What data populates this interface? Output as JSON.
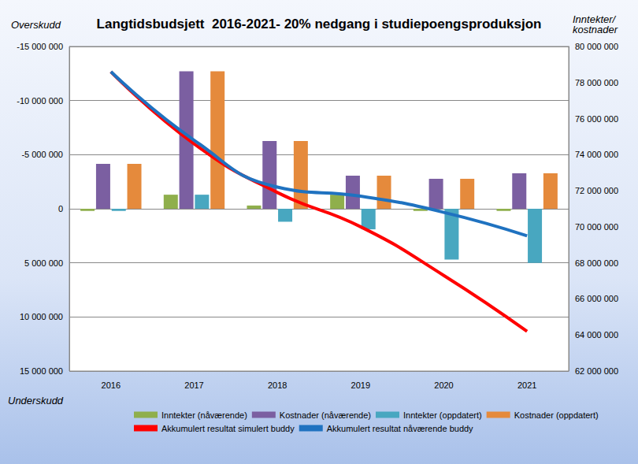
{
  "chart_data": {
    "type": "bar",
    "title": "Langtidsbudsjett  2016-2021- 20% nedgang i studiepoengsproduksjon",
    "ylabel_top": "Overskudd",
    "ylabel_bottom": "Underskudd",
    "y2label": "Inntekter/ kostnader",
    "categories": [
      "2016",
      "2017",
      "2018",
      "2019",
      "2020",
      "2021"
    ],
    "series": [
      {
        "name": "Inntekter (nåværende)",
        "type": "bar",
        "color": "#8faf4c",
        "values": [
          200000,
          -1300000,
          -300000,
          -1300000,
          200000,
          200000
        ]
      },
      {
        "name": "Kostnader (nåværende)",
        "type": "bar",
        "color": "#7b5fa1",
        "values": [
          -4150000,
          -12700000,
          -6260000,
          -3060000,
          -2770000,
          -3280000
        ]
      },
      {
        "name": "Inntekter (oppdatert)",
        "type": "bar",
        "color": "#48a7c0",
        "values": [
          200000,
          -1300000,
          1200000,
          1900000,
          4700000,
          5000000
        ]
      },
      {
        "name": "Kostnader (oppdatert)",
        "type": "bar",
        "color": "#e58a3c",
        "values": [
          -4150000,
          -12700000,
          -6260000,
          -3060000,
          -2770000,
          -3280000
        ]
      },
      {
        "name": "Akkumulert resultat simulert buddy",
        "type": "line",
        "axis": "y2",
        "color": "#ff0000",
        "marker": "none",
        "values": [
          78600000,
          74600000,
          71900000,
          70000000,
          67300000,
          64200000
        ]
      },
      {
        "name": "Akkumulert resultat nåværende buddy",
        "type": "line",
        "axis": "y2",
        "color": "#1f72c0",
        "marker": "none",
        "values": [
          78600000,
          74800000,
          72200000,
          71700000,
          70800000,
          69500000
        ]
      }
    ],
    "ylim": [
      15000000,
      -15000000
    ],
    "yticks": [
      {
        "value": -15000000,
        "label": "-15 000 000"
      },
      {
        "value": -10000000,
        "label": "-10 000 000"
      },
      {
        "value": -5000000,
        "label": "-5 000 000"
      },
      0,
      {
        "value": 5000000,
        "label": "5 000 000"
      },
      {
        "value": 10000000,
        "label": "10 000 000"
      },
      {
        "value": 15000000,
        "label": "15 000 000"
      }
    ],
    "y2lim": [
      62000000,
      80000000
    ],
    "y2ticks": [
      {
        "value": 62000000,
        "label": "62 000 000"
      },
      {
        "value": 64000000,
        "label": "64 000 000"
      },
      {
        "value": 66000000,
        "label": "66 000 000"
      },
      {
        "value": 68000000,
        "label": "68 000 000"
      },
      {
        "value": 70000000,
        "label": "70 000 000"
      },
      {
        "value": 72000000,
        "label": "72 000 000"
      },
      {
        "value": 74000000,
        "label": "74 000 000"
      },
      {
        "value": 76000000,
        "label": "76 000 000"
      },
      {
        "value": 78000000,
        "label": "78 000 000"
      },
      {
        "value": 80000000,
        "label": "80 000 000"
      }
    ],
    "grid": true,
    "legend": "bottom"
  }
}
